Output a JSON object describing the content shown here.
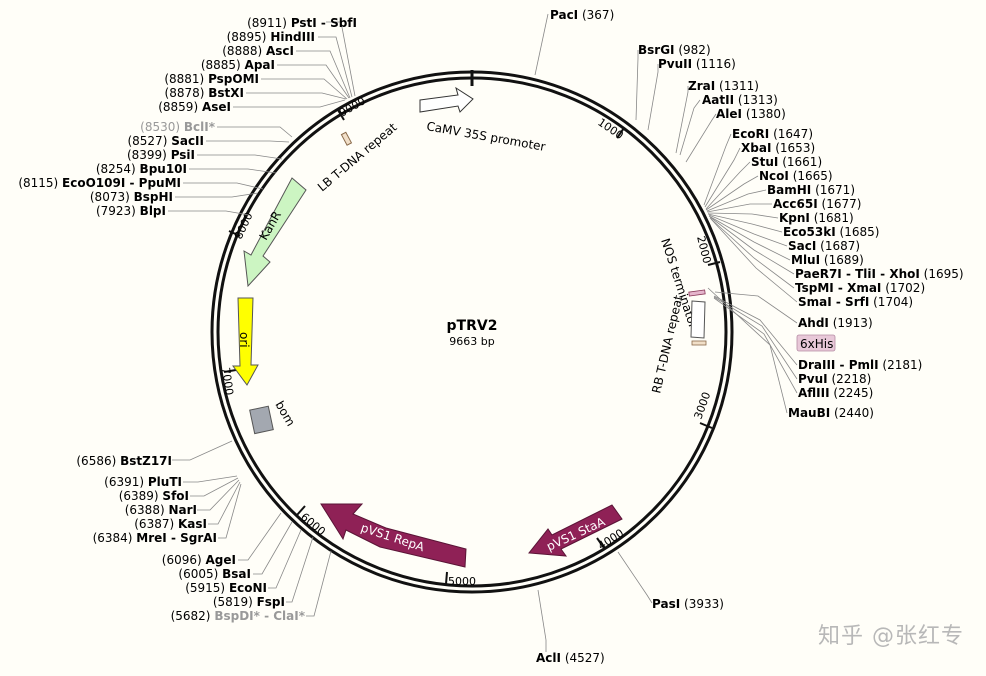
{
  "plasmid": {
    "name": "pTRV2",
    "size": "9663 bp"
  },
  "ticks": [
    "1000",
    "2000",
    "3000",
    "4000",
    "5000",
    "6000",
    "7000",
    "8000",
    "9000"
  ],
  "features": {
    "camv": "CaMV 35S promoter",
    "lb": "LB T-DNA repeat",
    "kanr": "KanR",
    "ori": "ori",
    "bom": "bom",
    "nos": "NOS terminator",
    "rb": "RB T-DNA repeat",
    "his": "6xHis",
    "stab": "pVS1 StaA",
    "repa": "pVS1 RepA"
  },
  "sites": {
    "pst": {
      "name": "PstI - SbfI",
      "pos": "(8911)"
    },
    "hind": {
      "name": "HindIII",
      "pos": "(8895)"
    },
    "asc": {
      "name": "AscI",
      "pos": "(8888)"
    },
    "apa": {
      "name": "ApaI",
      "pos": "(8885)"
    },
    "psp": {
      "name": "PspOMI",
      "pos": "(8881)"
    },
    "bstx": {
      "name": "BstXI",
      "pos": "(8878)"
    },
    "ase": {
      "name": "AseI",
      "pos": "(8859)"
    },
    "bcl": {
      "name": "BclI*",
      "pos": "(8530)"
    },
    "sac2": {
      "name": "SacII",
      "pos": "(8527)"
    },
    "psi": {
      "name": "PsiI",
      "pos": "(8399)"
    },
    "bpu": {
      "name": "Bpu10I",
      "pos": "(8254)"
    },
    "eco109": {
      "name": "EcoO109I - PpuMI",
      "pos": "(8115)"
    },
    "bsph": {
      "name": "BspHI",
      "pos": "(8073)"
    },
    "blp": {
      "name": "BlpI",
      "pos": "(7923)"
    },
    "pac": {
      "name": "PacI",
      "pos": "(367)"
    },
    "bsrg": {
      "name": "BsrGI",
      "pos": "(982)"
    },
    "pvu2": {
      "name": "PvuII",
      "pos": "(1116)"
    },
    "zra": {
      "name": "ZraI",
      "pos": "(1311)"
    },
    "aat": {
      "name": "AatII",
      "pos": "(1313)"
    },
    "ale": {
      "name": "AleI",
      "pos": "(1380)"
    },
    "ecori": {
      "name": "EcoRI",
      "pos": "(1647)"
    },
    "xba": {
      "name": "XbaI",
      "pos": "(1653)"
    },
    "stu": {
      "name": "StuI",
      "pos": "(1661)"
    },
    "nco": {
      "name": "NcoI",
      "pos": "(1665)"
    },
    "bamh": {
      "name": "BamHI",
      "pos": "(1671)"
    },
    "acc65": {
      "name": "Acc65I",
      "pos": "(1677)"
    },
    "kpn": {
      "name": "KpnI",
      "pos": "(1681)"
    },
    "eco53": {
      "name": "Eco53kI",
      "pos": "(1685)"
    },
    "sac1": {
      "name": "SacI",
      "pos": "(1687)"
    },
    "mlu": {
      "name": "MluI",
      "pos": "(1689)"
    },
    "paer": {
      "name": "PaeR7I - TliI - XhoI",
      "pos": "(1695)"
    },
    "tspm": {
      "name": "TspMI - XmaI",
      "pos": "(1702)"
    },
    "sma": {
      "name": "SmaI - SrfI",
      "pos": "(1704)"
    },
    "ahd": {
      "name": "AhdI",
      "pos": "(1913)"
    },
    "dra3": {
      "name": "DraIII - PmlI",
      "pos": "(2181)"
    },
    "pvu1": {
      "name": "PvuI",
      "pos": "(2218)"
    },
    "afl3": {
      "name": "AflIII",
      "pos": "(2245)"
    },
    "maub": {
      "name": "MauBI",
      "pos": "(2440)"
    },
    "pas": {
      "name": "PasI",
      "pos": "(3933)"
    },
    "acl": {
      "name": "AclI",
      "pos": "(4527)"
    },
    "bstz": {
      "name": "BstZ17I",
      "pos": "(6586)"
    },
    "plut": {
      "name": "PluTI",
      "pos": "(6391)"
    },
    "sfo": {
      "name": "SfoI",
      "pos": "(6389)"
    },
    "nar": {
      "name": "NarI",
      "pos": "(6388)"
    },
    "kas": {
      "name": "KasI",
      "pos": "(6387)"
    },
    "mre": {
      "name": "MreI - SgrAI",
      "pos": "(6384)"
    },
    "age": {
      "name": "AgeI",
      "pos": "(6096)"
    },
    "bsa": {
      "name": "BsaI",
      "pos": "(6005)"
    },
    "econ": {
      "name": "EcoNI",
      "pos": "(5915)"
    },
    "fsp": {
      "name": "FspI",
      "pos": "(5819)"
    },
    "bspd": {
      "name": "BspDI* - ClaI*",
      "pos": "(5682)"
    }
  },
  "watermark": "知乎 @张红专",
  "colors": {
    "kanr": "#ccf5c2",
    "ori": "#ffff00",
    "bom": "#a3a8b0",
    "pvs1": "#8f2156",
    "his": "#e8c8d8"
  }
}
